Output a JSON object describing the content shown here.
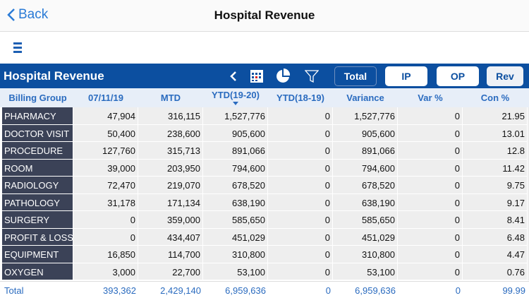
{
  "nav": {
    "back_label": "Back",
    "title": "Hospital Revenue"
  },
  "toolbar": {
    "title": "Hospital Revenue",
    "buttons": [
      "Total",
      "IP",
      "OP",
      "Rev"
    ],
    "active": "Total"
  },
  "table": {
    "headers": [
      "Billing Group",
      "07/11/19",
      "MTD",
      "YTD(19-20)",
      "YTD(18-19)",
      "Variance",
      "Var %",
      "Con %"
    ],
    "sorted_column": "YTD(19-20)",
    "rows": [
      [
        "PHARMACY",
        "47,904",
        "316,115",
        "1,527,776",
        "0",
        "1,527,776",
        "0",
        "21.95"
      ],
      [
        "DOCTOR VISIT",
        "50,400",
        "238,600",
        "905,600",
        "0",
        "905,600",
        "0",
        "13.01"
      ],
      [
        "PROCEDURE",
        "127,760",
        "315,713",
        "891,066",
        "0",
        "891,066",
        "0",
        "12.8"
      ],
      [
        "ROOM",
        "39,000",
        "203,950",
        "794,600",
        "0",
        "794,600",
        "0",
        "11.42"
      ],
      [
        "RADIOLOGY",
        "72,470",
        "219,070",
        "678,520",
        "0",
        "678,520",
        "0",
        "9.75"
      ],
      [
        "PATHOLOGY",
        "31,178",
        "171,134",
        "638,190",
        "0",
        "638,190",
        "0",
        "9.17"
      ],
      [
        "SURGERY",
        "0",
        "359,000",
        "585,650",
        "0",
        "585,650",
        "0",
        "8.41"
      ],
      [
        "PROFIT & LOSS",
        "0",
        "434,407",
        "451,029",
        "0",
        "451,029",
        "0",
        "6.48"
      ],
      [
        "EQUIPMENT",
        "16,850",
        "114,700",
        "310,800",
        "0",
        "310,800",
        "0",
        "4.47"
      ],
      [
        "OXYGEN",
        "3,000",
        "22,700",
        "53,100",
        "0",
        "53,100",
        "0",
        "0.76"
      ]
    ],
    "total": [
      "Total",
      "393,362",
      "2,429,140",
      "6,959,636",
      "0",
      "6,959,636",
      "0",
      "99.99"
    ]
  }
}
